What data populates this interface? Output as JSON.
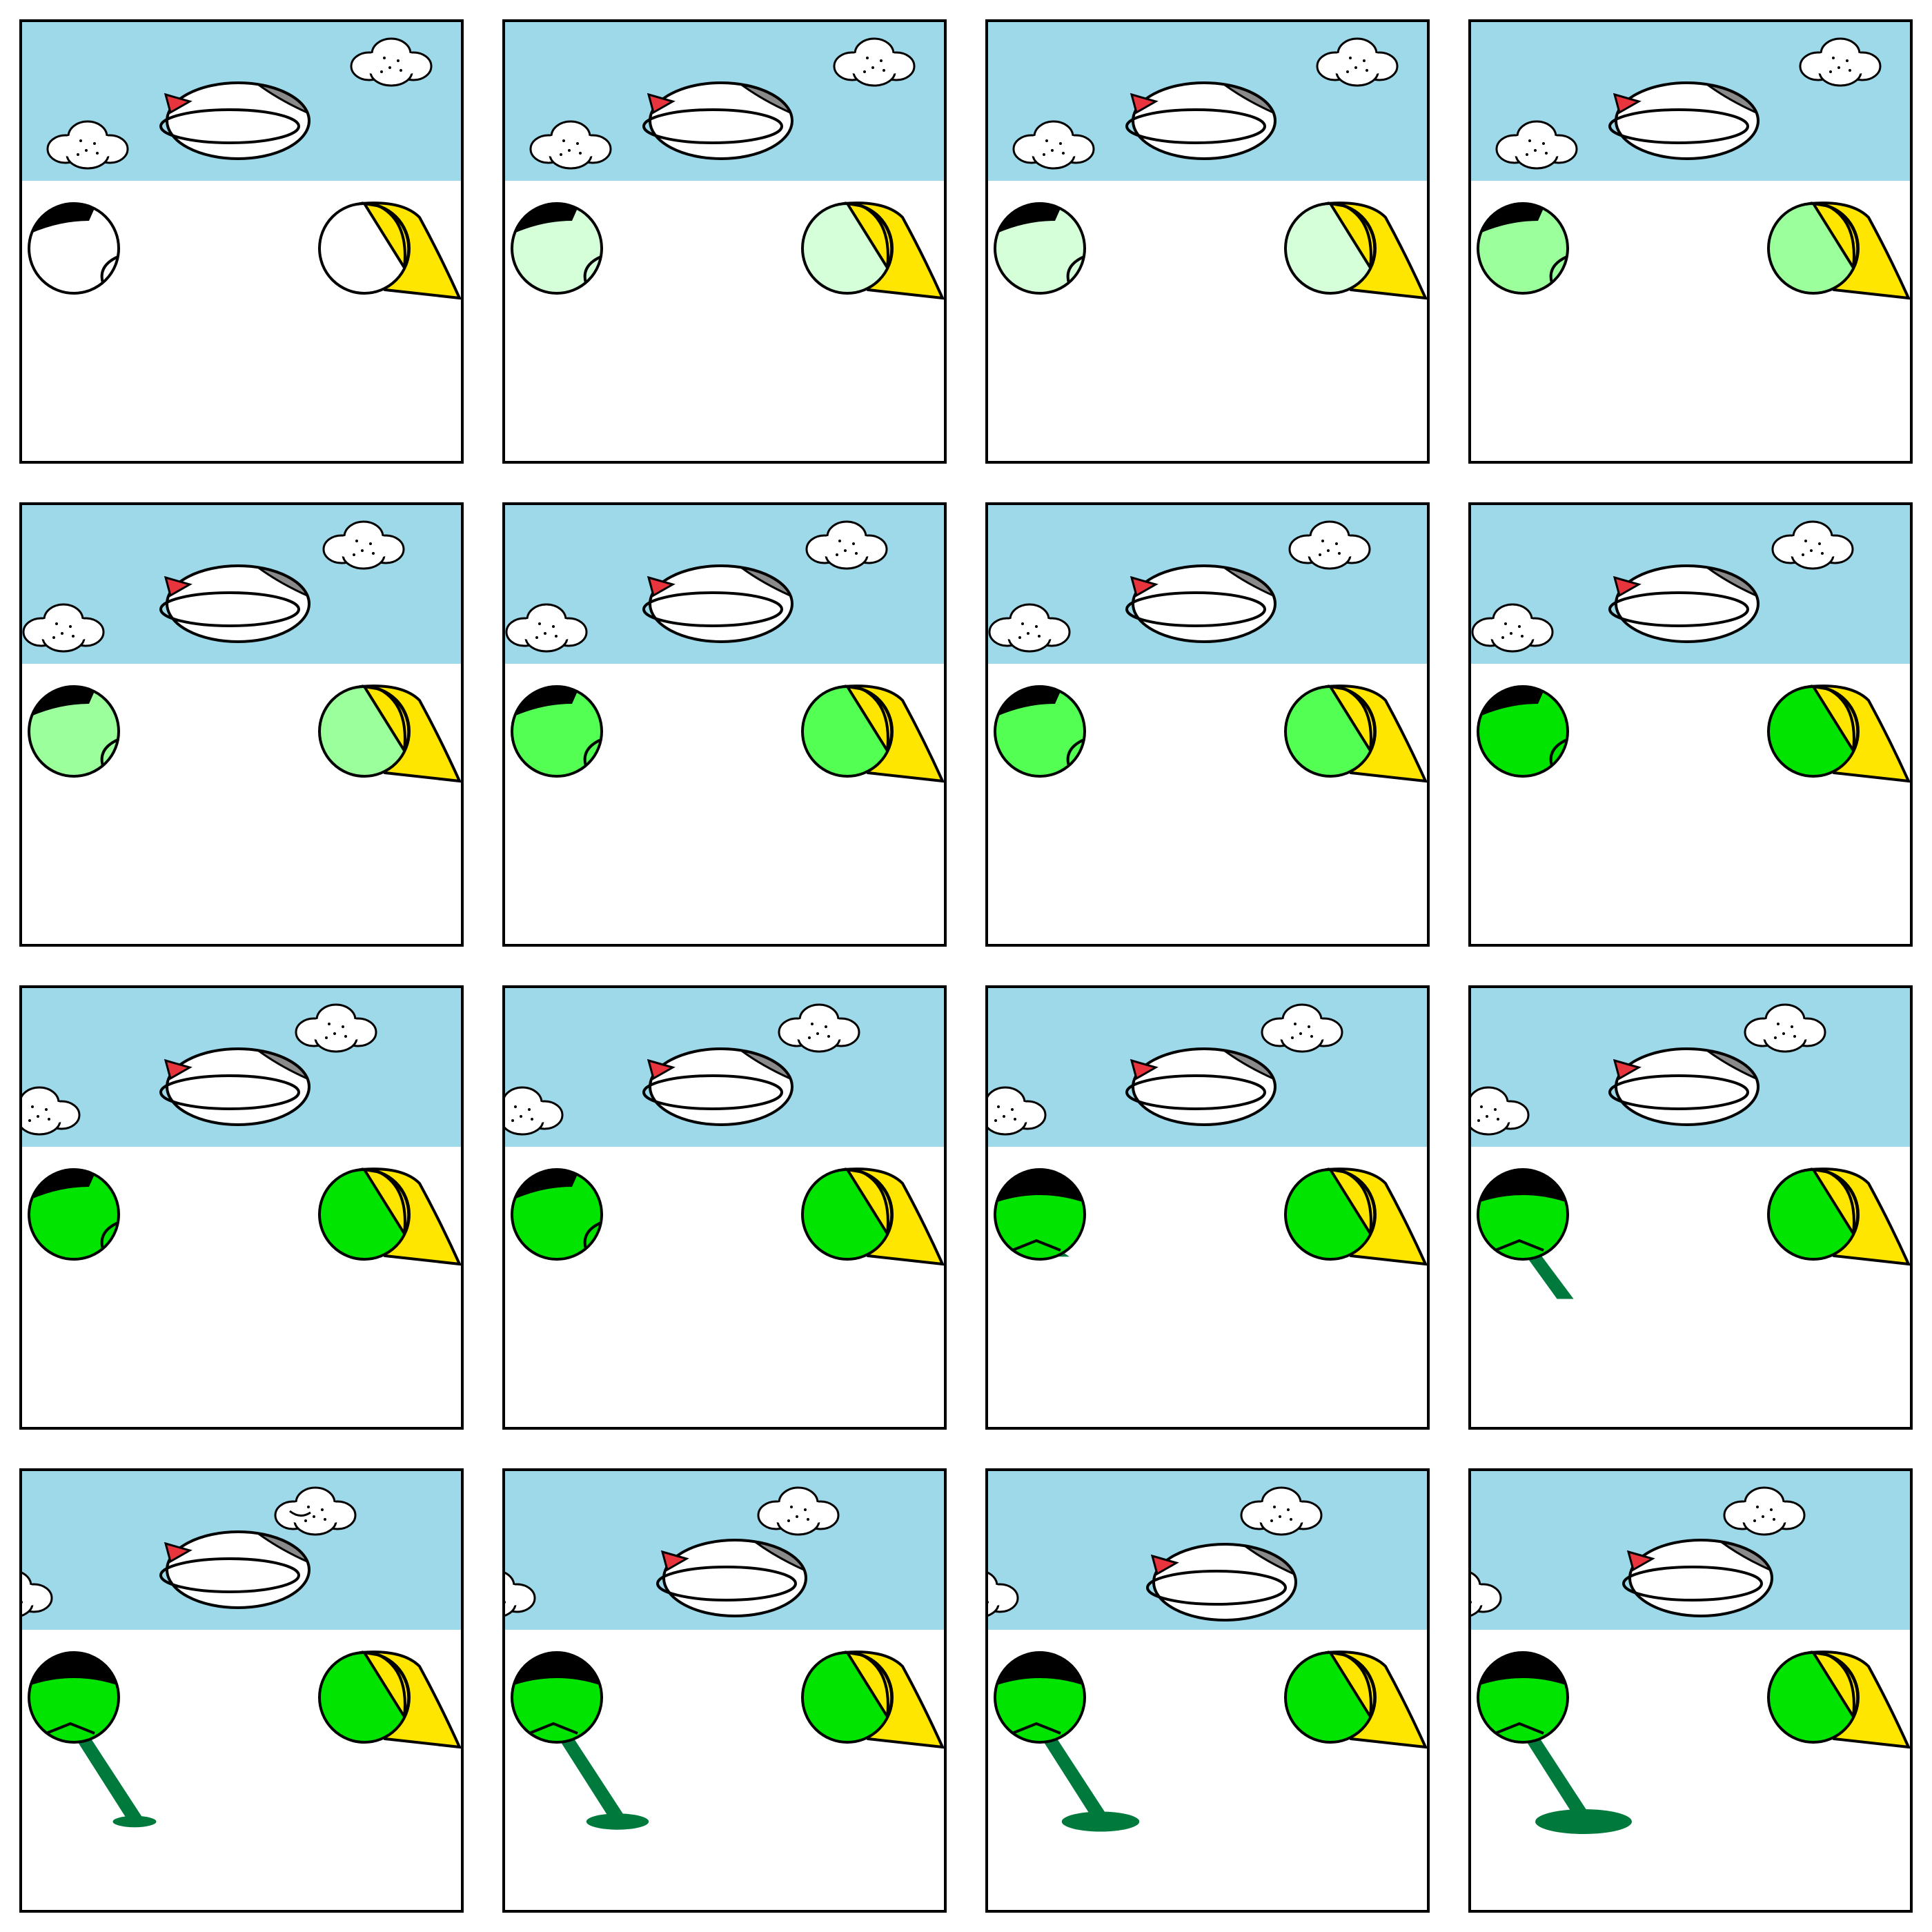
{
  "grid": {
    "rows": 4,
    "cols": 4
  },
  "colors": {
    "sky": "#9ed9ea",
    "ground": "#ffffff",
    "outline": "#000000",
    "cloud": "#ffffff",
    "ship_body": "#ffffff",
    "ship_cap": "#8a8a8a",
    "ship_flag": "#e8343c",
    "cone": "#ffe600",
    "sap": "#007a3c",
    "cap": "#000000"
  },
  "frames": [
    {
      "fill": "#ffffff",
      "cloudA": 0,
      "cloudB": 0,
      "ship": 0,
      "drip": 0,
      "puddle": 0,
      "cap": "side",
      "smile": false
    },
    {
      "fill": "#d4ffd8",
      "cloudA": 0,
      "cloudB": 0,
      "ship": 0,
      "drip": 0,
      "puddle": 0,
      "cap": "side",
      "smile": false
    },
    {
      "fill": "#d4ffd8",
      "cloudA": 0,
      "cloudB": 0,
      "ship": 0,
      "drip": 0,
      "puddle": 0,
      "cap": "side",
      "smile": false
    },
    {
      "fill": "#9bff9b",
      "cloudA": 0,
      "cloudB": 0,
      "ship": 0,
      "drip": 0,
      "puddle": 0,
      "cap": "side",
      "smile": false
    },
    {
      "fill": "#9bff9b",
      "cloudA": -35,
      "cloudB": -40,
      "ship": 0,
      "drip": 0,
      "puddle": 0,
      "cap": "side",
      "smile": false
    },
    {
      "fill": "#52ff52",
      "cloudA": -35,
      "cloudB": -40,
      "ship": 0,
      "drip": 0,
      "puddle": 0,
      "cap": "side",
      "smile": false
    },
    {
      "fill": "#52ff52",
      "cloudA": -35,
      "cloudB": -40,
      "ship": 0,
      "drip": 0,
      "puddle": 0,
      "cap": "side",
      "smile": false
    },
    {
      "fill": "#00e400",
      "cloudA": -35,
      "cloudB": -40,
      "ship": 0,
      "drip": 0,
      "puddle": 0,
      "cap": "side",
      "smile": false
    },
    {
      "fill": "#00e400",
      "cloudA": -70,
      "cloudB": -80,
      "ship": 0,
      "drip": 0,
      "puddle": 0,
      "cap": "side",
      "smile": false
    },
    {
      "fill": "#00e400",
      "cloudA": -70,
      "cloudB": -80,
      "ship": 0,
      "drip": 0,
      "puddle": 0,
      "cap": "side",
      "smile": false
    },
    {
      "fill": "#00e400",
      "cloudA": -70,
      "cloudB": -80,
      "ship": 0,
      "drip": 0.35,
      "puddle": 0,
      "cap": "top",
      "smile": false
    },
    {
      "fill": "#00e400",
      "cloudA": -70,
      "cloudB": -80,
      "ship": 0,
      "drip": 0.7,
      "puddle": 0,
      "cap": "top",
      "smile": false
    },
    {
      "fill": "#00e400",
      "cloudA": -110,
      "cloudB": -110,
      "ship": 0,
      "drip": 1,
      "puddle": 0.3,
      "cap": "top",
      "smile": true
    },
    {
      "fill": "#00e400",
      "cloudA": -110,
      "cloudB": -110,
      "ship": 20,
      "drip": 1,
      "puddle": 0.55,
      "cap": "top",
      "smile": false
    },
    {
      "fill": "#00e400",
      "cloudA": -110,
      "cloudB": -110,
      "ship": 30,
      "drip": 1,
      "puddle": 0.75,
      "cap": "top",
      "smile": false
    },
    {
      "fill": "#00e400",
      "cloudA": -110,
      "cloudB": -110,
      "ship": 20,
      "drip": 1,
      "puddle": 1,
      "cap": "top",
      "smile": false
    }
  ]
}
